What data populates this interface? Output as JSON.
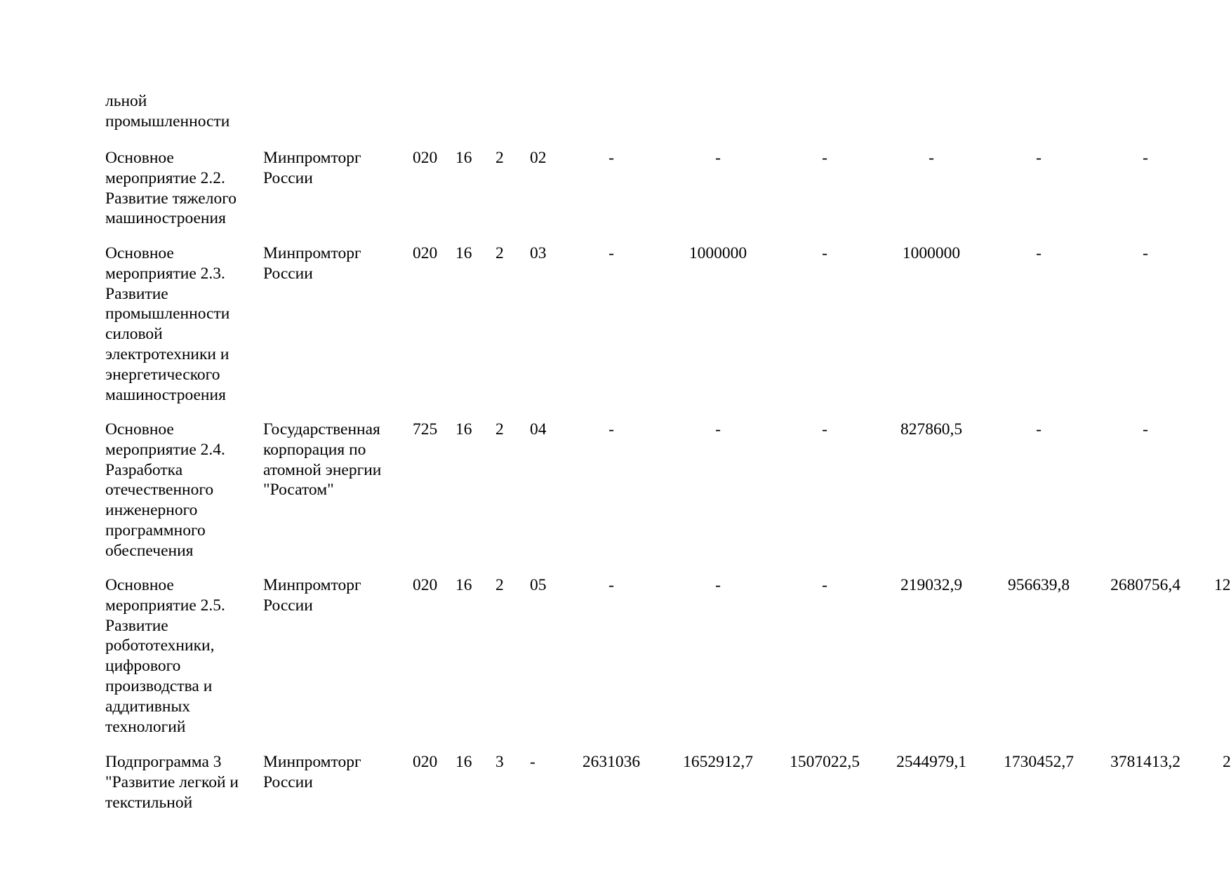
{
  "rows": [
    {
      "name": "льной\nпромышленности"
    },
    {
      "name": "Основное\nмероприятие 2.2.\nРазвитие тяжелого\nмашиностроения",
      "responsible": "Минпромторг\nРоссии",
      "grbs": "020",
      "gp": "16",
      "pp": "2",
      "om": "02",
      "values": [
        "-",
        "-",
        "-",
        "-",
        "-",
        "-"
      ]
    },
    {
      "name": "Основное\nмероприятие 2.3.\nРазвитие\nпромышленности\nсиловой\nэлектротехники и\nэнергетического\nмашиностроения",
      "responsible": "Минпромторг\nРоссии",
      "grbs": "020",
      "gp": "16",
      "pp": "2",
      "om": "03",
      "values": [
        "-",
        "1000000",
        "-",
        "1000000",
        "-",
        "-"
      ]
    },
    {
      "name": "Основное\nмероприятие 2.4.\nРазработка\nотечественного\nинженерного\nпрограммного\nобеспечения",
      "responsible": "Государственная\nкорпорация по\nатомной энергии\n\"Росатом\"",
      "grbs": "725",
      "gp": "16",
      "pp": "2",
      "om": "04",
      "values": [
        "-",
        "-",
        "-",
        "827860,5",
        "-",
        "-"
      ]
    },
    {
      "name": "Основное\nмероприятие 2.5.\nРазвитие\nробототехники,\nцифрового\nпроизводства и\nаддитивных\nтехнологий",
      "responsible": "Минпромторг\nРоссии",
      "grbs": "020",
      "gp": "16",
      "pp": "2",
      "om": "05",
      "values": [
        "-",
        "-",
        "-",
        "219032,9",
        "956639,8",
        "2680756,4",
        "12"
      ]
    },
    {
      "name": "Подпрограмма 3\n\"Развитие легкой и\nтекстильной",
      "responsible": "Минпромторг\nРоссии",
      "grbs": "020",
      "gp": "16",
      "pp": "3",
      "om": "-",
      "values": [
        "2631036",
        "1652912,7",
        "1507022,5",
        "2544979,1",
        "1730452,7",
        "3781413,2",
        "2"
      ]
    }
  ]
}
